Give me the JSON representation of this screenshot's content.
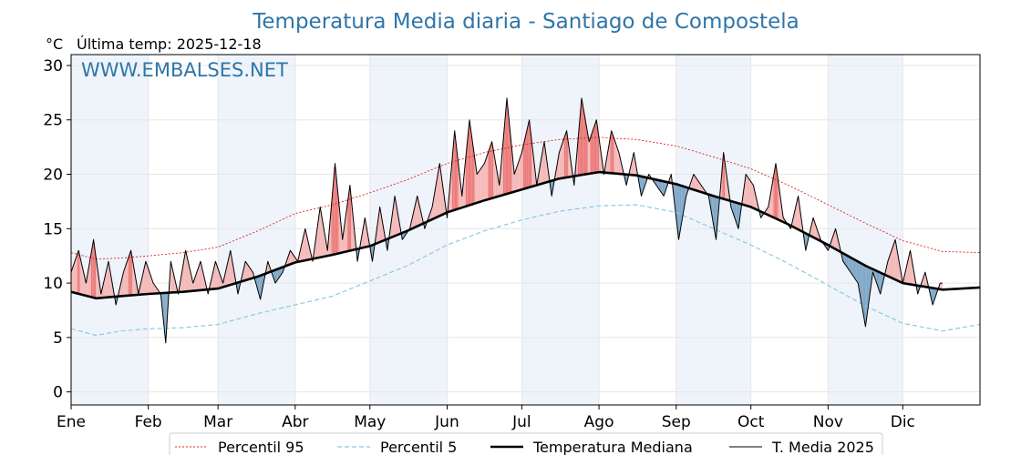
{
  "chart_data": {
    "type": "line",
    "title": "Temperatura Media diaria - Santiago de Compostela",
    "unit_label": "°C",
    "last_temp_label": "Última temp: 2025-12-18",
    "watermark": "WWW.EMBALSES.NET",
    "ylim": [
      -1.2,
      31
    ],
    "yticks": [
      0,
      5,
      10,
      15,
      20,
      25,
      30
    ],
    "xlim": [
      0,
      365
    ],
    "months": [
      {
        "label": "Ene",
        "start": 0
      },
      {
        "label": "Feb",
        "start": 31
      },
      {
        "label": "Mar",
        "start": 59
      },
      {
        "label": "Abr",
        "start": 90
      },
      {
        "label": "May",
        "start": 120
      },
      {
        "label": "Jun",
        "start": 151
      },
      {
        "label": "Jul",
        "start": 181
      },
      {
        "label": "Ago",
        "start": 212
      },
      {
        "label": "Sep",
        "start": 243
      },
      {
        "label": "Oct",
        "start": 273
      },
      {
        "label": "Nov",
        "start": 304
      },
      {
        "label": "Dic",
        "start": 334
      }
    ],
    "shaded_month_bands": [
      [
        0,
        31
      ],
      [
        59,
        90
      ],
      [
        120,
        151
      ],
      [
        181,
        212
      ],
      [
        243,
        273
      ],
      [
        304,
        334
      ]
    ],
    "grid": true,
    "legend_position": "bottom",
    "colors": {
      "title": "#2f75a8",
      "p95": "#e02020",
      "p5": "#8ec8e0",
      "median": "#000000",
      "current": "#000000",
      "fill_above": "#f4b8b8",
      "fill_above_strong": "#ec7a7a",
      "fill_below": "#7fa7c8",
      "band": "#eef4fa"
    },
    "series": [
      {
        "name": "Percentil 95",
        "key": "p95",
        "x": [
          0,
          10,
          20,
          31,
          45,
          59,
          75,
          90,
          105,
          120,
          135,
          151,
          166,
          181,
          196,
          212,
          227,
          243,
          258,
          273,
          288,
          304,
          319,
          334,
          350,
          365
        ],
        "y": [
          12.8,
          12.2,
          12.3,
          12.5,
          12.8,
          13.3,
          14.8,
          16.4,
          17.2,
          18.3,
          19.5,
          21.0,
          22.0,
          22.7,
          23.2,
          23.4,
          23.2,
          22.6,
          21.6,
          20.5,
          19.0,
          17.2,
          15.5,
          13.9,
          12.9,
          12.8
        ]
      },
      {
        "name": "Percentil 5",
        "key": "p5",
        "x": [
          0,
          10,
          20,
          31,
          45,
          59,
          75,
          90,
          105,
          120,
          135,
          151,
          166,
          181,
          196,
          212,
          227,
          243,
          258,
          273,
          288,
          304,
          319,
          334,
          350,
          365
        ],
        "y": [
          5.8,
          5.2,
          5.6,
          5.8,
          5.9,
          6.2,
          7.2,
          8.0,
          8.8,
          10.2,
          11.6,
          13.5,
          14.8,
          15.8,
          16.6,
          17.1,
          17.2,
          16.5,
          15.0,
          13.5,
          11.8,
          9.8,
          7.9,
          6.3,
          5.6,
          6.2
        ]
      },
      {
        "name": "Temperatura Mediana",
        "key": "median",
        "x": [
          0,
          10,
          20,
          31,
          45,
          59,
          75,
          90,
          105,
          120,
          135,
          151,
          166,
          181,
          196,
          212,
          227,
          243,
          258,
          273,
          288,
          304,
          319,
          334,
          350,
          365
        ],
        "y": [
          9.2,
          8.6,
          8.8,
          9.0,
          9.2,
          9.5,
          10.6,
          11.9,
          12.6,
          13.4,
          14.8,
          16.5,
          17.6,
          18.6,
          19.6,
          20.2,
          19.9,
          19.1,
          18.0,
          17.0,
          15.4,
          13.5,
          11.6,
          10.0,
          9.4,
          9.6
        ]
      },
      {
        "name": "T. Media 2025",
        "key": "current",
        "x": [
          0,
          3,
          6,
          9,
          12,
          15,
          18,
          21,
          24,
          27,
          30,
          33,
          36,
          38,
          40,
          43,
          46,
          49,
          52,
          55,
          58,
          61,
          64,
          67,
          70,
          73,
          76,
          79,
          82,
          85,
          88,
          91,
          94,
          97,
          100,
          103,
          106,
          109,
          112,
          115,
          118,
          121,
          124,
          127,
          130,
          133,
          136,
          139,
          142,
          145,
          148,
          151,
          154,
          157,
          160,
          163,
          166,
          169,
          172,
          175,
          178,
          181,
          184,
          187,
          190,
          193,
          196,
          199,
          202,
          205,
          208,
          211,
          214,
          217,
          220,
          223,
          226,
          229,
          232,
          235,
          238,
          241,
          244,
          247,
          250,
          253,
          256,
          259,
          262,
          265,
          268,
          271,
          274,
          277,
          280,
          283,
          286,
          289,
          292,
          295,
          298,
          301,
          304,
          307,
          310,
          313,
          316,
          319,
          322,
          325,
          328,
          331,
          334,
          337,
          340,
          343,
          346,
          349,
          350
        ],
        "y": [
          11,
          13,
          10,
          14,
          9,
          12,
          8,
          11,
          13,
          9,
          12,
          10,
          9,
          4.5,
          12,
          9,
          13,
          10,
          12,
          9,
          12,
          10,
          13,
          9,
          12,
          11,
          8.5,
          12,
          10,
          11,
          13,
          12,
          15,
          12,
          17,
          13,
          21,
          14,
          19,
          12,
          16,
          12,
          17,
          13,
          18,
          14,
          15,
          18,
          15,
          17,
          21,
          16,
          24,
          18,
          25,
          20,
          21,
          23,
          19,
          27,
          20,
          22,
          25,
          19,
          23,
          18,
          22,
          24,
          19,
          27,
          23,
          25,
          20,
          24,
          22,
          19,
          22,
          18,
          20,
          19,
          18,
          20,
          14,
          18,
          20,
          19,
          18,
          14,
          22,
          17,
          15,
          20,
          19,
          16,
          17,
          21,
          16,
          15,
          18,
          13,
          16,
          14,
          13,
          15,
          12,
          11,
          10,
          6,
          11,
          9,
          12,
          14,
          10,
          13,
          9,
          11,
          8,
          10,
          10
        ]
      }
    ]
  }
}
